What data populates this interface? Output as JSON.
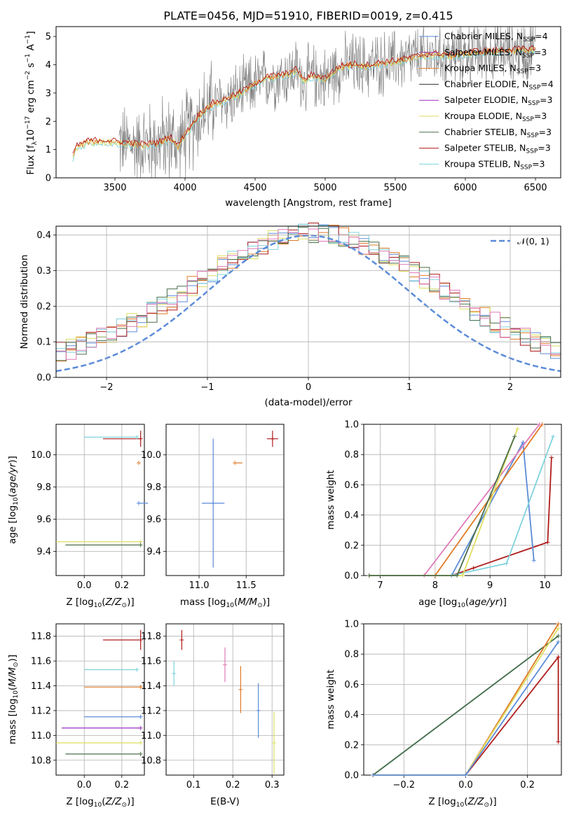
{
  "colors": {
    "Chabrier MILES": "#5b8bd9",
    "Salpeter MILES": "#a23aa8",
    "Kroupa MILES": "#e07b27",
    "Chabrier ELODIE": "#333333",
    "Salpeter ELODIE": "#9b2fc0",
    "Kroupa ELODIE": "#dede60",
    "Chabrier STELIB": "#4a6e4a",
    "Salpeter STELIB": "#b01c1c",
    "Kroupa STELIB": "#7ed3dc",
    "Pink": "#e07ab8",
    "Gauss": "#5b8bd9",
    "Spectrum": "#7a7a7a"
  },
  "chart_data": [
    {
      "id": "spectrum",
      "type": "line",
      "title": "PLATE=0456, MJD=51910, FIBERID=0019, z=0.415",
      "xlabel": "wavelength [Angstrom, rest frame]",
      "ylabel": "Flux [f$_\\lambda$10$^{-17}$ erg cm$^{-2}$ s$^{-1}$ A$^{-1}$]",
      "xlim": [
        3080,
        6680
      ],
      "ylim": [
        0,
        5.35
      ],
      "xticks": [
        3500,
        4000,
        4500,
        5000,
        5500,
        6000,
        6500
      ],
      "yticks": [
        0,
        1,
        2,
        3,
        4,
        5
      ],
      "legend_position": "right",
      "legend": [
        {
          "label": "Chabrier MILES, N",
          "sub": "SSP",
          "tail": "=4"
        },
        {
          "label": "Salpeter MILES, N",
          "sub": "SSP",
          "tail": "=3"
        },
        {
          "label": "Kroupa MILES, N",
          "sub": "SSP",
          "tail": "=3"
        },
        {
          "label": "Chabrier ELODIE, N",
          "sub": "SSP",
          "tail": "=4"
        },
        {
          "label": "Salpeter ELODIE, N",
          "sub": "SSP",
          "tail": "=3"
        },
        {
          "label": "Kroupa ELODIE, N",
          "sub": "SSP",
          "tail": "=3"
        },
        {
          "label": "Chabrier STELIB, N",
          "sub": "SSP",
          "tail": "=3"
        },
        {
          "label": "Salpeter STELIB, N",
          "sub": "SSP",
          "tail": "=3"
        },
        {
          "label": "Kroupa STELIB, N",
          "sub": "SSP",
          "tail": "=3"
        }
      ],
      "model_curve": {
        "x": [
          3200,
          3220,
          3300,
          3400,
          3500,
          3600,
          3700,
          3800,
          3900,
          3950,
          4000,
          4100,
          4200,
          4300,
          4400,
          4500,
          4600,
          4700,
          4800,
          4850,
          4900,
          5000,
          5100,
          5200,
          5300,
          5400,
          5500,
          5600,
          5700,
          5800,
          5900,
          6000,
          6100,
          6200,
          6300,
          6400,
          6500
        ],
        "y": [
          0.7,
          1.05,
          1.25,
          1.3,
          1.25,
          1.2,
          1.15,
          1.2,
          1.4,
          1.1,
          1.5,
          2.2,
          2.6,
          2.75,
          3.0,
          3.3,
          3.55,
          3.6,
          3.8,
          3.4,
          3.6,
          3.5,
          3.9,
          4.0,
          3.95,
          4.05,
          4.1,
          4.2,
          4.3,
          4.35,
          4.3,
          4.4,
          4.45,
          4.45,
          4.5,
          4.5,
          4.55
        ]
      }
    },
    {
      "id": "residual-hist",
      "type": "bar",
      "xlabel": "(data-model)/error",
      "ylabel": "Normed distribution",
      "xlim": [
        -2.5,
        2.5
      ],
      "ylim": [
        0,
        0.425
      ],
      "xticks": [
        -2,
        -1,
        0,
        1,
        2
      ],
      "yticks": [
        0.0,
        0.1,
        0.2,
        0.3,
        0.4
      ],
      "legend_position": "top-right",
      "legend": "$\\mathcal{N}(0,1)$",
      "bin_width": 0.1
    },
    {
      "id": "age-vs-Z",
      "type": "scatter",
      "xlabel": "Z [log$_{10}$(Z/Z$_\\odot$)]",
      "ylabel": "age  [log$_{10}$(age/yr)]",
      "xlim": [
        -0.15,
        0.32
      ],
      "ylim": [
        9.25,
        10.19
      ],
      "xticks": [
        0.0,
        0.2
      ],
      "yticks": [
        9.4,
        9.6,
        9.8,
        10.0
      ],
      "series": [
        {
          "series": "Chabrier MILES",
          "x": 0.29,
          "xerr": [
            0.0,
            0.05
          ],
          "y": 9.7,
          "yerr": [
            0.0,
            0.0
          ]
        },
        {
          "series": "Kroupa MILES",
          "x": 0.29,
          "xerr": [
            0.0,
            0.0
          ],
          "y": 9.95,
          "yerr": [
            0.0,
            0.0
          ]
        },
        {
          "series": "Salpeter STELIB",
          "x": 0.3,
          "xerr": [
            0.2,
            0.0
          ],
          "y": 10.1,
          "yerr": [
            0.05,
            0.05
          ]
        },
        {
          "series": "Kroupa STELIB",
          "x": 0.28,
          "xerr": [
            0.28,
            0.0
          ],
          "y": 10.11,
          "yerr": [
            0.0,
            0.0
          ]
        },
        {
          "series": "Kroupa ELODIE",
          "x": 0.3,
          "xerr": [
            0.45,
            0.0
          ],
          "y": 9.46,
          "yerr": [
            0.0,
            0.0
          ]
        },
        {
          "series": "Chabrier STELIB",
          "x": 0.3,
          "xerr": [
            0.4,
            0.0
          ],
          "y": 9.44,
          "yerr": [
            0.0,
            0.0
          ]
        }
      ]
    },
    {
      "id": "age-vs-mass",
      "type": "scatter",
      "xlabel": "mass [log$_{10}$(M/M$_\\odot$)]",
      "ylabel": "",
      "xlim": [
        10.65,
        11.9
      ],
      "ylim": [
        9.25,
        10.19
      ],
      "xticks": [
        11.0,
        11.5
      ],
      "yticks": [
        9.4,
        9.6,
        9.8,
        10.0
      ],
      "series": [
        {
          "series": "Salpeter STELIB",
          "x": 11.78,
          "xerr": [
            0.06,
            0.06
          ],
          "y": 10.1,
          "yerr": [
            0.05,
            0.05
          ]
        },
        {
          "series": "Chabrier MILES",
          "x": 11.15,
          "xerr": [
            0.12,
            0.12
          ],
          "y": 9.7,
          "yerr": [
            0.4,
            0.4
          ]
        },
        {
          "series": "Kroupa MILES",
          "x": 11.38,
          "xerr": [
            0.0,
            0.08
          ],
          "y": 9.95,
          "yerr": [
            0.0,
            0.0
          ]
        }
      ]
    },
    {
      "id": "massweight-vs-age",
      "type": "line",
      "xlabel": "age  [log$_{10}$(age/yr)]",
      "ylabel": "mass weight",
      "xlim": [
        6.7,
        10.3
      ],
      "ylim": [
        0,
        1.0
      ],
      "xticks": [
        7,
        8,
        9,
        10
      ],
      "yticks": [
        0.0,
        0.2,
        0.4,
        0.6,
        0.8,
        1.0
      ],
      "series": [
        {
          "series": "Salpeter STELIB",
          "x": [
            6.8,
            8.3,
            8.7,
            10.05,
            10.12
          ],
          "y": [
            0.0,
            0.0,
            0.05,
            0.22,
            0.78
          ]
        },
        {
          "series": "Chabrier MILES",
          "x": [
            6.8,
            8.3,
            9.6,
            9.8
          ],
          "y": [
            0.0,
            0.0,
            0.88,
            0.1
          ]
        },
        {
          "series": "Kroupa STELIB",
          "x": [
            6.8,
            8.3,
            9.3,
            10.15
          ],
          "y": [
            0.0,
            0.0,
            0.08,
            0.92
          ]
        },
        {
          "series": "Kroupa MILES",
          "x": [
            6.8,
            8.0,
            9.95
          ],
          "y": [
            0.0,
            0.0,
            1.0
          ]
        },
        {
          "series": "Pink",
          "x": [
            6.8,
            7.8,
            9.9
          ],
          "y": [
            0.0,
            0.0,
            1.0
          ]
        },
        {
          "series": "Kroupa ELODIE",
          "x": [
            6.8,
            8.5,
            9.5
          ],
          "y": [
            0.0,
            0.0,
            0.97
          ]
        },
        {
          "series": "Chabrier STELIB",
          "x": [
            6.8,
            8.4,
            9.45
          ],
          "y": [
            0.0,
            0.0,
            0.92
          ]
        }
      ]
    },
    {
      "id": "mass-vs-Z",
      "type": "scatter",
      "xlabel": "Z [log$_{10}$(Z/Z$_\\odot$)]",
      "ylabel": "mass [log$_{10}$(M/M$_\\odot$)]",
      "xlim": [
        -0.15,
        0.32
      ],
      "ylim": [
        10.68,
        11.9
      ],
      "xticks": [
        0.0,
        0.2
      ],
      "yticks": [
        10.8,
        11.0,
        11.2,
        11.4,
        11.6,
        11.8
      ],
      "series": [
        {
          "series": "Salpeter STELIB",
          "x": 0.3,
          "xerr": [
            0.2,
            0.0
          ],
          "y": 11.77,
          "yerr": [
            0.08,
            0.08
          ]
        },
        {
          "series": "Kroupa STELIB",
          "x": 0.28,
          "xerr": [
            0.28,
            0.0
          ],
          "y": 11.53,
          "yerr": [
            0.0,
            0.0
          ]
        },
        {
          "series": "Kroupa MILES",
          "x": 0.3,
          "xerr": [
            0.3,
            0.0
          ],
          "y": 11.39,
          "yerr": [
            0.0,
            0.0
          ]
        },
        {
          "series": "Chabrier MILES",
          "x": 0.3,
          "xerr": [
            0.3,
            0.0
          ],
          "y": 11.15,
          "yerr": [
            0.0,
            0.0
          ]
        },
        {
          "series": "Salpeter ELODIE",
          "x": 0.3,
          "xerr": [
            0.42,
            0.0
          ],
          "y": 11.06,
          "yerr": [
            0.0,
            0.0
          ]
        },
        {
          "series": "Kroupa ELODIE",
          "x": 0.3,
          "xerr": [
            0.45,
            0.0
          ],
          "y": 10.94,
          "yerr": [
            0.0,
            0.0
          ]
        },
        {
          "series": "Chabrier STELIB",
          "x": 0.3,
          "xerr": [
            0.4,
            0.0
          ],
          "y": 10.85,
          "yerr": [
            0.0,
            0.0
          ]
        }
      ]
    },
    {
      "id": "mass-vs-EBV",
      "type": "scatter",
      "xlabel": "E(B-V)",
      "ylabel": "",
      "xlim": [
        0.03,
        0.33
      ],
      "ylim": [
        10.68,
        11.9
      ],
      "xticks": [
        0.1,
        0.2,
        0.3
      ],
      "yticks": [
        10.8,
        11.0,
        11.2,
        11.4,
        11.6,
        11.8
      ],
      "series": [
        {
          "series": "Salpeter STELIB",
          "x": 0.07,
          "y": 11.77,
          "yerr": [
            0.08,
            0.08
          ]
        },
        {
          "series": "Kroupa STELIB",
          "x": 0.05,
          "y": 11.5,
          "yerr": [
            0.1,
            0.1
          ]
        },
        {
          "series": "Pink",
          "x": 0.18,
          "y": 11.57,
          "yerr": [
            0.14,
            0.14
          ]
        },
        {
          "series": "Kroupa MILES",
          "x": 0.22,
          "y": 11.37,
          "yerr": [
            0.19,
            0.19
          ]
        },
        {
          "series": "Chabrier MILES",
          "x": 0.265,
          "y": 11.2,
          "yerr": [
            0.22,
            0.22
          ]
        },
        {
          "series": "Kroupa ELODIE",
          "x": 0.305,
          "y": 10.94,
          "yerr": [
            0.25,
            0.25
          ]
        }
      ]
    },
    {
      "id": "massweight-vs-Z",
      "type": "line",
      "xlabel": "Z [log$_{10}$(Z/Z$_\\odot$)]",
      "ylabel": "mass weight",
      "xlim": [
        -0.33,
        0.31
      ],
      "ylim": [
        0,
        1.0
      ],
      "xticks": [
        -0.2,
        0.0,
        0.2
      ],
      "yticks": [
        0.0,
        0.2,
        0.4,
        0.6,
        0.8,
        1.0
      ],
      "series": [
        {
          "series": "Kroupa STELIB",
          "x": [
            -0.3,
            0.3
          ],
          "y": [
            0.0,
            0.92
          ]
        },
        {
          "series": "Chabrier STELIB",
          "x": [
            -0.3,
            0.3
          ],
          "y": [
            0.0,
            0.92
          ]
        },
        {
          "series": "Salpeter STELIB",
          "x": [
            -0.3,
            0.0,
            0.3,
            0.3
          ],
          "y": [
            0.0,
            0.0,
            0.78,
            0.22
          ]
        },
        {
          "series": "Kroupa MILES",
          "x": [
            -0.3,
            0.0,
            0.3
          ],
          "y": [
            0.0,
            0.0,
            1.0
          ]
        },
        {
          "series": "Kroupa ELODIE",
          "x": [
            -0.3,
            0.0,
            0.3
          ],
          "y": [
            0.0,
            0.0,
            0.97
          ]
        },
        {
          "series": "Chabrier MILES",
          "x": [
            -0.3,
            0.0,
            0.3
          ],
          "y": [
            0.0,
            0.0,
            0.88
          ]
        }
      ]
    }
  ]
}
